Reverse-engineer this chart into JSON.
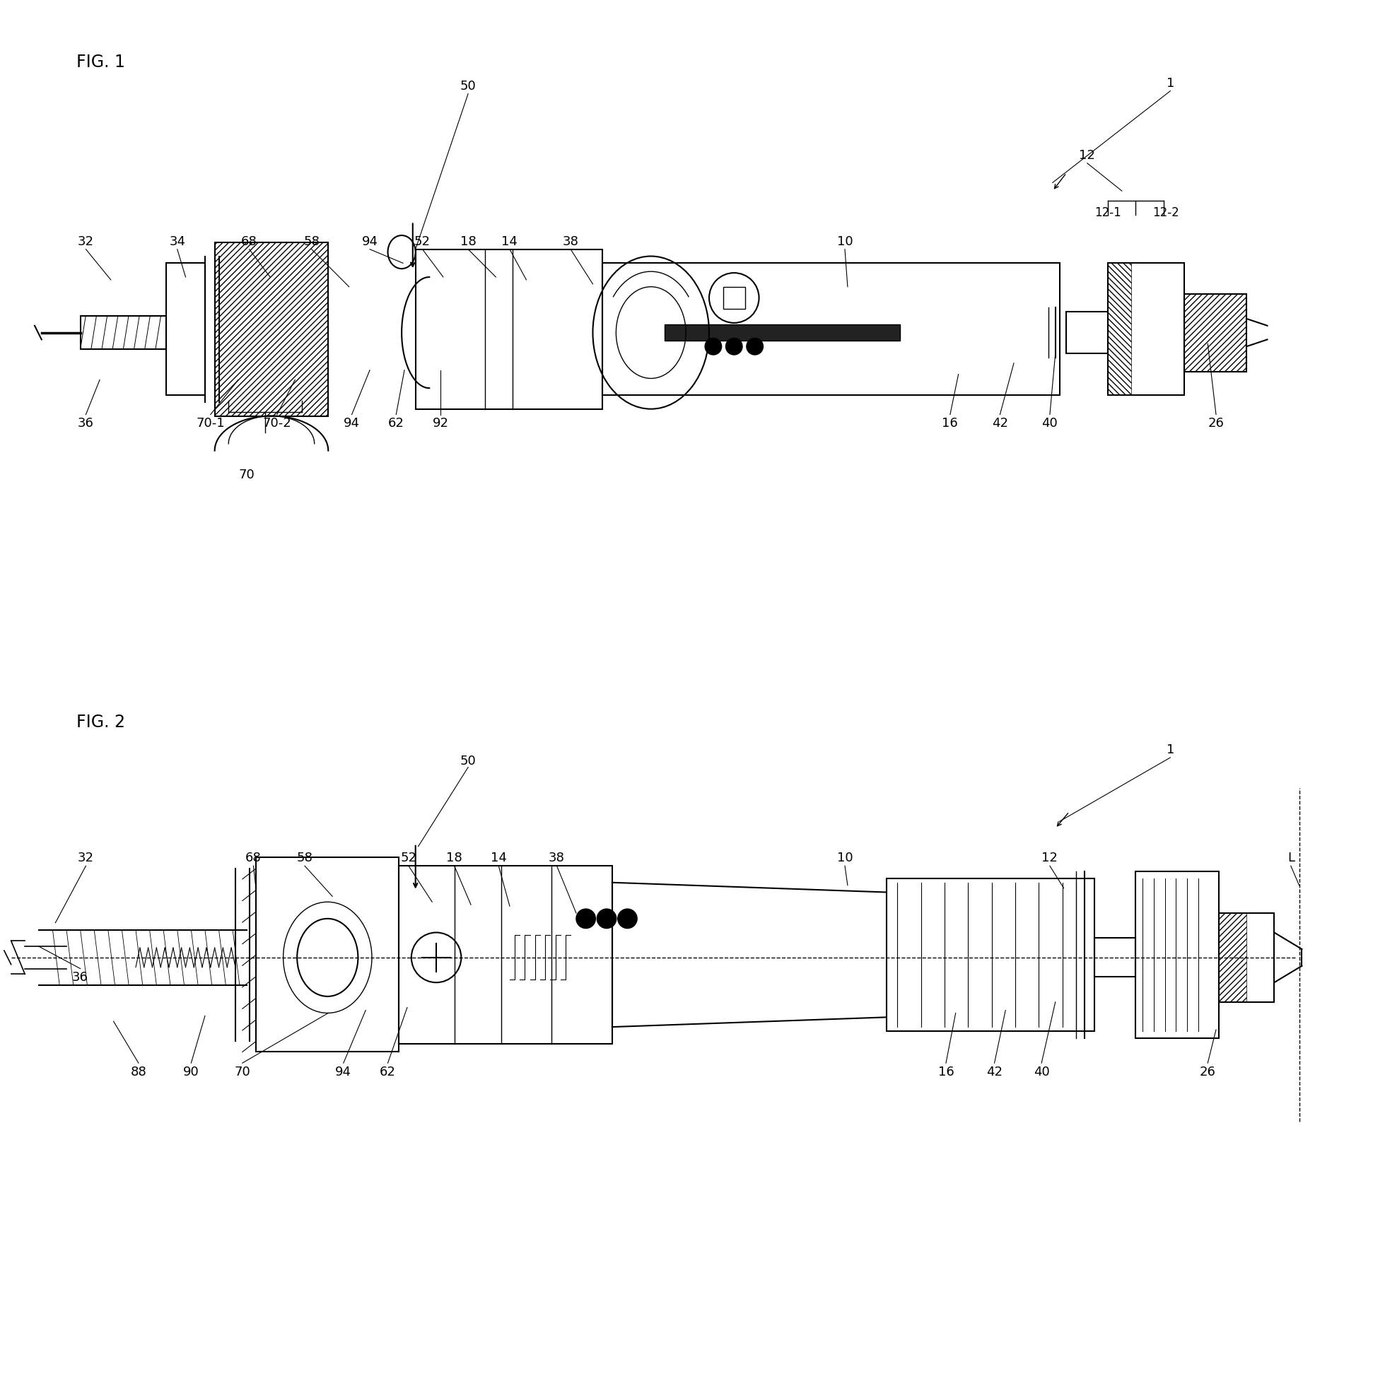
{
  "fig1_label": "FIG. 1",
  "fig2_label": "FIG. 2",
  "bg_color": "#ffffff",
  "line_color": "#000000"
}
